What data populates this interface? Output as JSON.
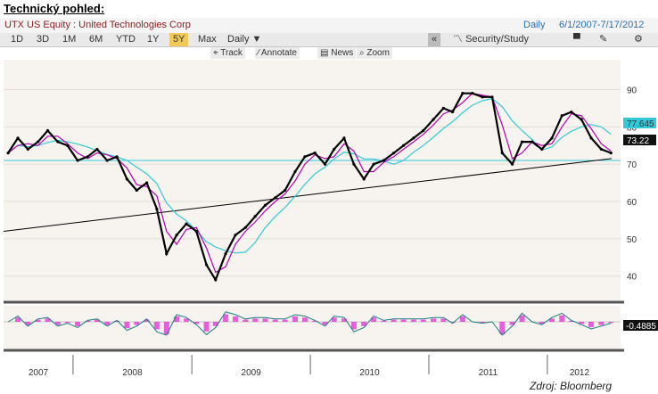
{
  "heading": "Technický pohled:",
  "titlebar": {
    "security": "UTX US Equity : United Technologies Corp",
    "frequency": "Daily",
    "range": "6/1/2007-7/17/2012"
  },
  "toolbar": {
    "periods": [
      "1D",
      "3D",
      "1M",
      "6M",
      "YTD",
      "1Y",
      "5Y",
      "Max"
    ],
    "active_period": "5Y",
    "interval": "Daily",
    "collapse": "«",
    "security_study": "Security/Study"
  },
  "subbar": {
    "track": "Track",
    "annotate": "Annotate",
    "news": "News",
    "zoom": "Zoom"
  },
  "source": "Zdroj: Bloomberg",
  "colors": {
    "price": "#000000",
    "ma_short": "#b000b0",
    "ma_long": "#33c9d6",
    "band": "#33c9d6",
    "trend": "#000000",
    "osc_hist": "#e020d0"
  },
  "chart_data": {
    "type": "line",
    "x_labels": [
      "2007",
      "2008",
      "2009",
      "2010",
      "2011",
      "2012"
    ],
    "y_ticks": [
      40,
      50,
      60,
      70,
      80,
      90
    ],
    "ylim": [
      33,
      98
    ],
    "price_marker": "73.22",
    "ma_marker": "77.645",
    "horizontal_level": 71,
    "trendline": [
      {
        "date": "2007-06-01",
        "value": 52
      },
      {
        "date": "2012-07-17",
        "value": 71.5
      }
    ],
    "series": [
      {
        "values": [
          [
            "2007-06",
            73
          ],
          [
            "2007-07",
            77
          ],
          [
            "2007-08",
            74
          ],
          [
            "2007-09",
            76
          ],
          [
            "2007-10",
            79
          ],
          [
            "2007-11",
            76
          ],
          [
            "2007-12",
            75
          ],
          [
            "2008-01",
            71
          ],
          [
            "2008-02",
            72
          ],
          [
            "2008-03",
            74
          ],
          [
            "2008-04",
            71
          ],
          [
            "2008-05",
            72
          ],
          [
            "2008-06",
            66
          ],
          [
            "2008-07",
            63
          ],
          [
            "2008-08",
            65
          ],
          [
            "2008-09",
            58
          ],
          [
            "2008-10",
            46
          ],
          [
            "2008-11",
            51
          ],
          [
            "2008-12",
            54
          ],
          [
            "2009-01",
            52
          ],
          [
            "2009-02",
            43
          ],
          [
            "2009-03",
            39
          ],
          [
            "2009-04",
            46
          ],
          [
            "2009-05",
            51
          ],
          [
            "2009-06",
            53
          ],
          [
            "2009-07",
            56
          ],
          [
            "2009-08",
            59
          ],
          [
            "2009-09",
            61
          ],
          [
            "2009-10",
            63
          ],
          [
            "2009-11",
            68
          ],
          [
            "2009-12",
            72
          ],
          [
            "2010-01",
            73
          ],
          [
            "2010-02",
            70
          ],
          [
            "2010-03",
            74
          ],
          [
            "2010-04",
            77
          ],
          [
            "2010-05",
            70
          ],
          [
            "2010-06",
            66
          ],
          [
            "2010-07",
            70
          ],
          [
            "2010-08",
            71
          ],
          [
            "2010-09",
            73
          ],
          [
            "2010-10",
            75
          ],
          [
            "2010-11",
            77
          ],
          [
            "2010-12",
            79
          ],
          [
            "2011-01",
            82
          ],
          [
            "2011-02",
            85
          ],
          [
            "2011-03",
            84
          ],
          [
            "2011-04",
            89
          ],
          [
            "2011-05",
            89
          ],
          [
            "2011-06",
            88
          ],
          [
            "2011-07",
            88
          ],
          [
            "2011-08",
            73
          ],
          [
            "2011-09",
            70
          ],
          [
            "2011-10",
            76
          ],
          [
            "2011-11",
            76
          ],
          [
            "2011-12",
            74
          ],
          [
            "2012-01",
            77
          ],
          [
            "2012-02",
            83
          ],
          [
            "2012-03",
            84
          ],
          [
            "2012-04",
            82
          ],
          [
            "2012-05",
            77
          ],
          [
            "2012-06",
            74
          ],
          [
            "2012-07",
            73
          ]
        ]
      }
    ]
  },
  "oscillator": {
    "marker": "-0.4885"
  }
}
